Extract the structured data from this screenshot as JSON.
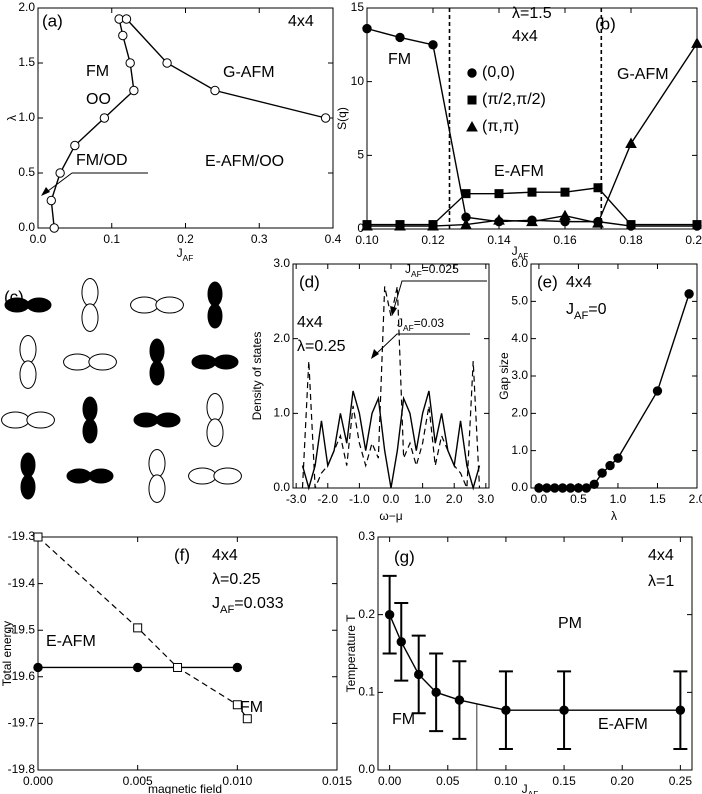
{
  "chart_data": [
    {
      "type": "scatter",
      "label": "(a)",
      "xlabel": "JAF",
      "ylabel": "λ",
      "annotations": [
        "4x4",
        "FM",
        "OO",
        "G-AFM",
        "FM/OD",
        "E-AFM/OO"
      ],
      "xlim": [
        0,
        0.4
      ],
      "ylim": [
        0,
        2
      ],
      "xticks": [
        {
          "value": 0,
          "label": "0.0"
        },
        0.1,
        0.2,
        0.3,
        0.4
      ],
      "yticks": [
        {
          "value": 0,
          "label": "0.0"
        },
        0.5,
        {
          "value": 1,
          "label": "1.0"
        },
        1.5,
        {
          "value": 2,
          "label": "2.0"
        }
      ],
      "series": [
        {
          "x": [
            0.022,
            0.018,
            0.03,
            0.05,
            0.09,
            0.13,
            0.125,
            0.115,
            0.11
          ],
          "values": [
            0,
            0.25,
            0.5,
            0.75,
            1.0,
            1.25,
            1.5,
            1.75,
            1.9
          ],
          "marker": "circle",
          "fill": "#ffffff",
          "line": "solid"
        },
        {
          "x": [
            0.12,
            0.175,
            0.24,
            0.39
          ],
          "values": [
            1.9,
            1.5,
            1.25,
            1.0
          ],
          "marker": "circle",
          "fill": "#ffffff",
          "line": "solid"
        }
      ]
    },
    {
      "type": "line",
      "label": "(b)",
      "xlabel": "JAF",
      "ylabel": "S(q)",
      "annotations": [
        "λ=1.5",
        "4x4",
        "FM",
        "E-AFM",
        "G-AFM"
      ],
      "xlim": [
        0.1,
        0.2
      ],
      "ylim": [
        0,
        15
      ],
      "xticks": [
        {
          "value": 0.1,
          "label": "0.10"
        },
        0.12,
        0.14,
        0.16,
        0.18,
        {
          "value": 0.2,
          "label": "0.20"
        }
      ],
      "yticks": [
        0,
        5,
        10,
        15
      ],
      "vlines": [
        0.125,
        0.171
      ],
      "legend": true,
      "x": [
        0.1,
        0.11,
        0.12,
        0.13,
        0.14,
        0.15,
        0.16,
        0.17,
        0.18,
        0.2
      ],
      "series": [
        {
          "name": "(0,0)",
          "values": [
            13.6,
            13.0,
            12.5,
            0.8,
            0.5,
            0.6,
            0.5,
            0.5,
            0.2,
            0.2
          ],
          "marker": "circle",
          "fill": "#000000",
          "line": "solid"
        },
        {
          "name": "(π/2,π/2)",
          "values": [
            0.3,
            0.3,
            0.3,
            2.4,
            2.4,
            2.5,
            2.5,
            2.8,
            0.3,
            0.3
          ],
          "marker": "square",
          "fill": "#000000",
          "line": "solid"
        },
        {
          "name": "(π,π)",
          "values": [
            0.2,
            0.2,
            0.2,
            0.3,
            0.6,
            0.5,
            0.9,
            0.4,
            5.8,
            12.6
          ],
          "marker": "triangle",
          "fill": "#000000",
          "line": "solid"
        }
      ]
    },
    {
      "type": "line",
      "label": "(d)",
      "xlabel": "ω−μ",
      "ylabel": "Density of states",
      "annotations": [
        "4x4",
        "λ=0.25"
      ],
      "xlim": [
        -3.1,
        3.1
      ],
      "ylim": [
        0,
        3
      ],
      "xticks": [
        {
          "value": -3,
          "label": "-3.0"
        },
        {
          "value": -2,
          "label": "-2.0"
        },
        {
          "value": -1,
          "label": "-1.0"
        },
        {
          "value": 0,
          "label": "0.0"
        },
        {
          "value": 1,
          "label": "1.0"
        },
        {
          "value": 2,
          "label": "2.0"
        },
        {
          "value": 3,
          "label": "3.0"
        }
      ],
      "yticks": [
        {
          "value": 0,
          "label": "0.0"
        },
        {
          "value": 1,
          "label": "1.0"
        },
        {
          "value": 2,
          "label": "2.0"
        },
        {
          "value": 3,
          "label": "3.0"
        }
      ],
      "x": [
        -2.8,
        -2.6,
        -2.4,
        -2.2,
        -2.0,
        -1.8,
        -1.6,
        -1.4,
        -1.2,
        -1.0,
        -0.8,
        -0.6,
        -0.4,
        -0.2,
        0,
        0.2,
        0.4,
        0.6,
        0.8,
        1.0,
        1.2,
        1.4,
        1.6,
        1.8,
        2.0,
        2.2,
        2.4,
        2.6,
        2.8
      ],
      "series": [
        {
          "name": "JAF=0.025",
          "values": [
            0,
            1.7,
            0,
            0.2,
            0.3,
            0.5,
            0.7,
            0.3,
            1.1,
            0.6,
            0.3,
            0.6,
            0.4,
            2.7,
            2.3,
            2.7,
            0.4,
            0.6,
            0.3,
            0.6,
            1.1,
            0.3,
            0.7,
            0.5,
            0.3,
            0.2,
            0,
            1.7,
            0
          ],
          "marker": "none",
          "line": "dashed"
        },
        {
          "name": "JAF=0.03",
          "values": [
            0.3,
            0,
            0.3,
            0.9,
            0.3,
            0.5,
            1.0,
            0.6,
            1.3,
            1.0,
            0.5,
            1.0,
            1.2,
            0.5,
            0,
            0.5,
            1.2,
            1.0,
            0.5,
            1.0,
            1.3,
            0.6,
            1.0,
            0.5,
            0.3,
            0.9,
            0.3,
            0,
            0.3
          ],
          "marker": "none",
          "line": "solid"
        }
      ]
    },
    {
      "type": "line",
      "label": "(e)",
      "xlabel": "λ",
      "ylabel": "Gap size",
      "annotations": [
        "4x4",
        "JAF=0"
      ],
      "xlim": [
        -0.1,
        2.0
      ],
      "ylim": [
        0,
        6
      ],
      "xticks": [
        {
          "value": 0,
          "label": "0.0"
        },
        0.5,
        {
          "value": 1,
          "label": "1.0"
        },
        1.5,
        {
          "value": 2,
          "label": "2.0"
        }
      ],
      "yticks": [
        {
          "value": 0,
          "label": "0.0"
        },
        {
          "value": 1,
          "label": "1.0"
        },
        {
          "value": 2,
          "label": "2.0"
        },
        {
          "value": 3,
          "label": "3.0"
        },
        {
          "value": 4,
          "label": "4.0"
        },
        {
          "value": 5,
          "label": "5.0"
        },
        {
          "value": 6,
          "label": "6.0"
        }
      ],
      "x": [
        0,
        0.1,
        0.2,
        0.3,
        0.4,
        0.5,
        0.6,
        0.7,
        0.8,
        0.9,
        1.0,
        1.5,
        1.9
      ],
      "series": [
        {
          "values": [
            0,
            0,
            0,
            0,
            0,
            0,
            0,
            0.1,
            0.4,
            0.6,
            0.8,
            2.6,
            5.2
          ],
          "marker": "circle",
          "fill": "#000000",
          "line": "solid"
        }
      ]
    },
    {
      "type": "line",
      "label": "(f)",
      "xlabel": "magnetic field",
      "ylabel": "Total energy",
      "annotations": [
        "4x4",
        "λ=0.25",
        "JAF=0.033",
        "E-AFM",
        "FM"
      ],
      "xlim": [
        0,
        0.015
      ],
      "ylim": [
        -19.8,
        -19.3
      ],
      "xticks": [
        {
          "value": 0,
          "label": "0.000"
        },
        0.005,
        {
          "value": 0.01,
          "label": "0.010"
        },
        0.015
      ],
      "yticks": [
        -19.3,
        -19.4,
        -19.5,
        -19.6,
        -19.7,
        -19.8
      ],
      "series": [
        {
          "x": [
            0,
            0.005,
            0.01
          ],
          "values": [
            -19.58,
            -19.58,
            -19.58
          ],
          "marker": "circle",
          "fill": "#000000",
          "line": "solid"
        },
        {
          "x": [
            0,
            0.005,
            0.007,
            0.01,
            0.0105
          ],
          "values": [
            -19.3,
            -19.495,
            -19.58,
            -19.66,
            -19.69
          ],
          "marker": "square",
          "fill": "#ffffff",
          "line": "dashed"
        }
      ]
    },
    {
      "type": "line",
      "label": "(g)",
      "xlabel": "JAF",
      "ylabel": "Temperature T",
      "annotations": [
        "4x4",
        "λ=1",
        "PM",
        "FM",
        "E-AFM"
      ],
      "xlim": [
        -0.01,
        0.26
      ],
      "ylim": [
        0,
        0.3
      ],
      "xticks": [
        {
          "value": 0,
          "label": "0.00"
        },
        0.05,
        {
          "value": 0.1,
          "label": "0.10"
        },
        0.15,
        {
          "value": 0.2,
          "label": "0.20"
        },
        0.25
      ],
      "yticks": [
        {
          "value": 0,
          "label": "0.0"
        },
        0.1,
        0.2,
        0.3
      ],
      "vlines": [
        0.075
      ],
      "x": [
        0,
        0.01,
        0.025,
        0.04,
        0.06,
        0.1,
        0.15,
        0.25
      ],
      "series": [
        {
          "values": [
            0.2,
            0.165,
            0.123,
            0.1,
            0.09,
            0.077,
            0.077,
            0.077
          ],
          "errors": [
            0.05,
            0.05,
            0.05,
            0.05,
            0.05,
            0.05,
            0.05,
            0.05
          ],
          "marker": "circle",
          "fill": "#000000",
          "line": "solid"
        }
      ]
    }
  ],
  "orbital_panel": {
    "label": "(c)"
  }
}
